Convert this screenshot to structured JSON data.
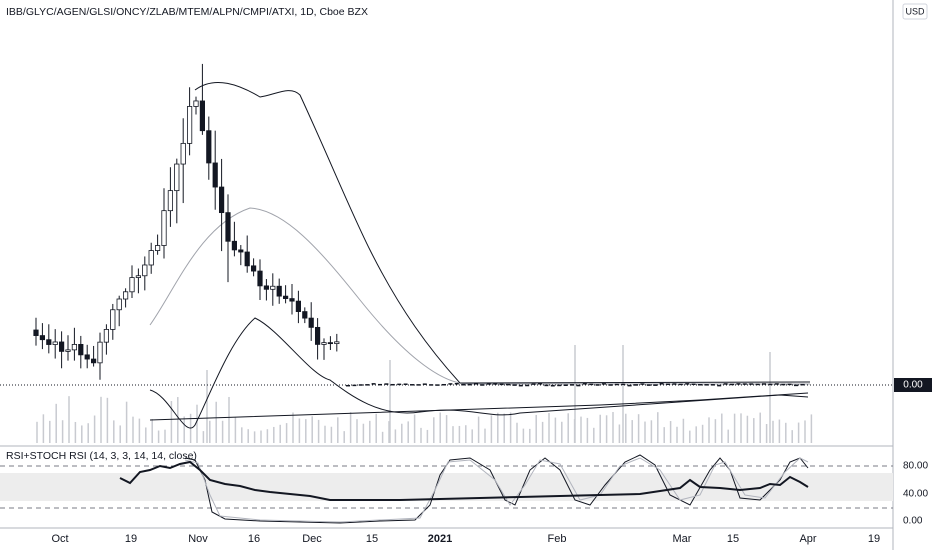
{
  "header": {
    "title": "IBB/GLYC/AGEN/GLSI/ONCY/ZLAB/MTEM/ALPN/CMPI/ATXI, 1D, Cboe BZX",
    "currency": "USD"
  },
  "price_axis": {
    "last_price": "0.00"
  },
  "indicator": {
    "title": "RSI+STOCH RSI (14, 3, 3, 14, 14, close)",
    "axis_labels": [
      "80.00",
      "40.00",
      "0.00"
    ]
  },
  "time_axis": {
    "labels": [
      "Oct",
      "19",
      "Nov",
      "16",
      "Dec",
      "15",
      "2021",
      "Feb",
      "Mar",
      "15",
      "Apr",
      "19"
    ]
  }
}
